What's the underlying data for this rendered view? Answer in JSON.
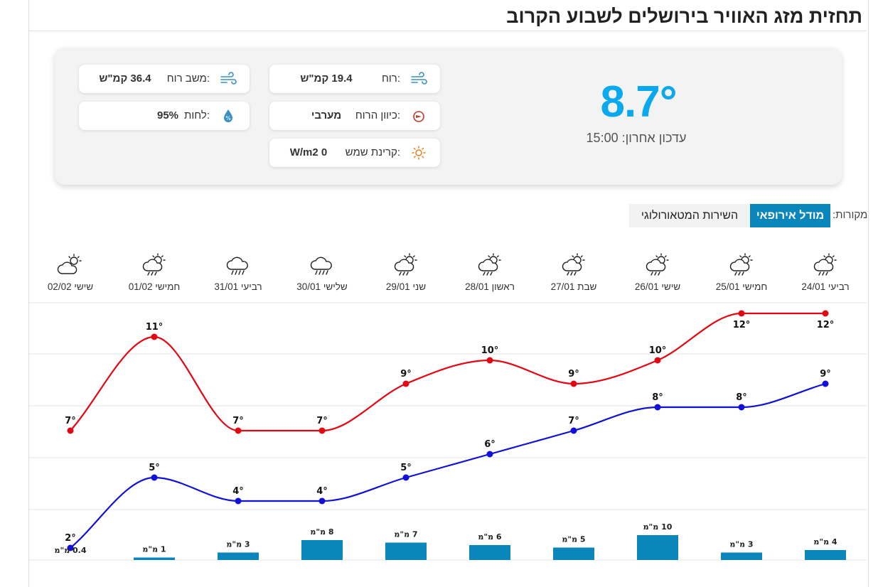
{
  "title": "תחזית מזג האוויר בירושלים לשבוע הקרוב",
  "current": {
    "temperature": "8.7°",
    "last_update": "עדכון אחרון: 15:00"
  },
  "stats": {
    "wind": {
      "label": "רוח:",
      "value": "19.4 קמ\"ש"
    },
    "gust": {
      "label": "משב רוח:",
      "value": "36.4 קמ\"ש"
    },
    "wind_direction": {
      "label": "כיוון הרוח:",
      "value": "מערבי"
    },
    "humidity": {
      "label": "לחות:",
      "value": "95%"
    },
    "radiation": {
      "label": "קרינת שמש:",
      "value": "W/m2  0"
    }
  },
  "sources": {
    "label": "מקורות:",
    "options": [
      "מודל אירופאי",
      "השירות המטאורולוגי"
    ],
    "selected": "מודל אירופאי"
  },
  "colors": {
    "accent": "#0aa9ee",
    "max_line": "#e30613",
    "min_line": "#1010d8",
    "bar": "#0a86bb"
  },
  "days": [
    {
      "label": "רביעי 24/01",
      "icon": "partly-cloudy-rain-icon"
    },
    {
      "label": "חמישי 25/01",
      "icon": "partly-cloudy-rain-icon"
    },
    {
      "label": "שישי 26/01",
      "icon": "partly-cloudy-rain-icon"
    },
    {
      "label": "שבת 27/01",
      "icon": "partly-cloudy-rain-icon"
    },
    {
      "label": "ראשון 28/01",
      "icon": "partly-cloudy-rain-icon"
    },
    {
      "label": "שני 29/01",
      "icon": "partly-cloudy-rain-icon"
    },
    {
      "label": "שלישי 30/01",
      "icon": "rain-cloud-icon"
    },
    {
      "label": "רביעי 31/01",
      "icon": "rain-cloud-icon"
    },
    {
      "label": "חמישי 01/02",
      "icon": "partly-cloudy-rain-icon"
    },
    {
      "label": "שישי 02/02",
      "icon": "partly-cloudy-icon"
    }
  ],
  "chart_data": {
    "type": "line",
    "x": [
      "24/01",
      "25/01",
      "26/01",
      "27/01",
      "28/01",
      "29/01",
      "30/01",
      "31/01",
      "01/02",
      "02/02"
    ],
    "series": [
      {
        "name": "max",
        "values": [
          12,
          12,
          10,
          9,
          10,
          9,
          7,
          7,
          11,
          7
        ]
      },
      {
        "name": "min",
        "values": [
          9,
          8,
          8,
          7,
          6,
          5,
          4,
          4,
          5,
          2
        ]
      }
    ],
    "temp_labels_max": [
      "12°",
      "12°",
      "10°",
      "9°",
      "10°",
      "9°",
      "7°",
      "7°",
      "11°",
      "7°"
    ],
    "temp_labels_min": [
      "9°",
      "8°",
      "8°",
      "7°",
      "6°",
      "5°",
      "4°",
      "4°",
      "5°",
      "2°"
    ],
    "precip_mm": [
      4,
      3,
      10,
      5,
      6,
      7,
      8,
      3,
      1,
      0.4
    ],
    "precip_labels": [
      "4 מ\"מ",
      "3 מ\"מ",
      "10 מ\"מ",
      "5 מ\"מ",
      "6 מ\"מ",
      "7 מ\"מ",
      "8 מ\"מ",
      "3 מ\"מ",
      "1 מ\"מ",
      "0.4 מ\"מ"
    ]
  }
}
